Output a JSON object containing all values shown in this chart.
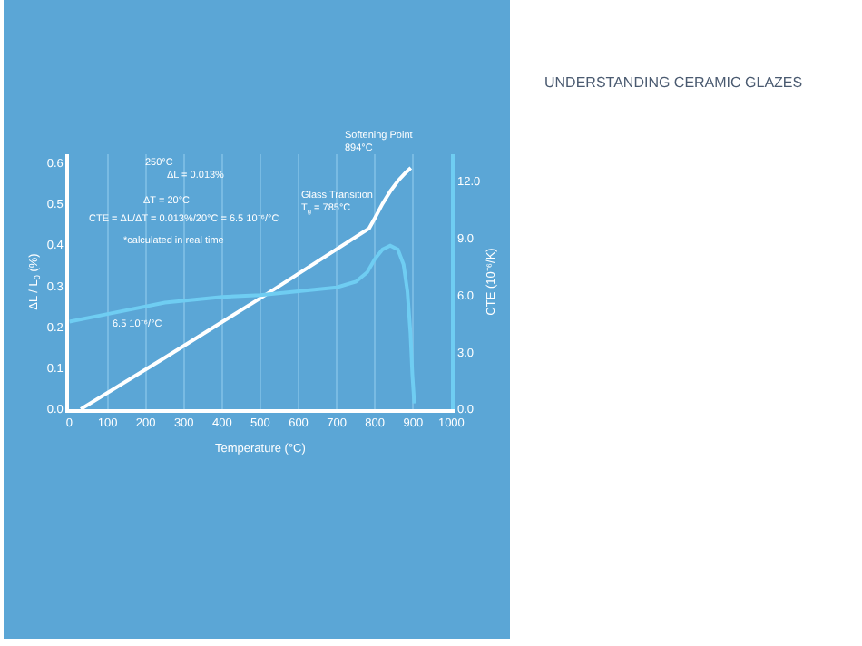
{
  "chart_data": {
    "type": "line",
    "title": "UNDERSTANDING CERAMIC GLAZES",
    "xlabel": "Temperature (°C)",
    "ylabel": "ΔL / L$_{0}$ (%)",
    "y2label": "CTE (10⁻⁶/K)",
    "series": [
      {
        "color": "#ffffff",
        "x": [
          30,
          250,
          500,
          785,
          800,
          820,
          840,
          860,
          880,
          894
        ],
        "values": [
          0.0,
          0.125,
          0.27,
          0.44,
          0.465,
          0.5,
          0.53,
          0.555,
          0.575,
          0.587
        ]
      },
      {
        "color": "#6fcdf2",
        "axis": "y2",
        "x": [
          0,
          100,
          250,
          400,
          500,
          600,
          700,
          750,
          780,
          800,
          820,
          840,
          860,
          875,
          885,
          893,
          898,
          903
        ],
        "values": [
          4.6,
          5.0,
          5.6,
          5.9,
          6.0,
          6.2,
          6.4,
          6.7,
          7.2,
          7.9,
          8.4,
          8.6,
          8.4,
          7.6,
          6.2,
          4.0,
          1.8,
          0.3
        ]
      }
    ],
    "xlim": [
      0,
      1000
    ],
    "xticks": [
      0,
      100,
      200,
      300,
      400,
      500,
      600,
      700,
      800,
      900,
      1000
    ],
    "ylim": [
      0,
      0.62
    ],
    "yticks": [
      {
        "value": 0,
        "label": "0.0"
      },
      0.1,
      0.2,
      0.3,
      0.4,
      0.5,
      0.6
    ],
    "y2lim": [
      0,
      13.4
    ],
    "y2ticks": [
      {
        "value": 0,
        "label": "0.0"
      },
      {
        "value": 3,
        "label": "3.0"
      },
      {
        "value": 6,
        "label": "6.0"
      },
      {
        "value": 9,
        "label": "9.0"
      },
      {
        "value": 12,
        "label": "12.0"
      }
    ],
    "grid": "x",
    "annotations": [
      {
        "text": "Softening Point\n894°C",
        "x": 894,
        "y": 0.587
      },
      {
        "text": "Glass Transition\nT$_{g}$ = 785°C",
        "x": 785,
        "y": 0.44
      },
      "250°C",
      "ΔL = 0.013%",
      "ΔT = 20°C",
      "CTE = ΔL/ΔT = 0.013%/20°C = 6.5 10⁻⁶/°C",
      "*calculated in real time",
      "6.5 10⁻⁶/°C"
    ]
  }
}
